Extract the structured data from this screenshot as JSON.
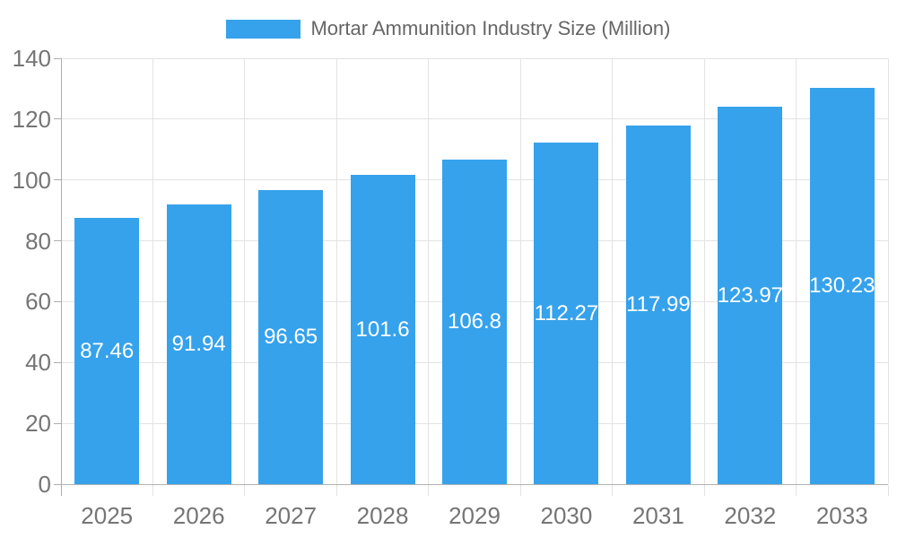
{
  "legend": {
    "label": "Mortar Ammunition Industry Size (Million)"
  },
  "chart_data": {
    "type": "bar",
    "title": "Mortar Ammunition Industry Size (Million)",
    "series_name": "Mortar Ammunition Industry Size (Million)",
    "categories": [
      "2025",
      "2026",
      "2027",
      "2028",
      "2029",
      "2030",
      "2031",
      "2032",
      "2033"
    ],
    "values": [
      87.46,
      91.94,
      96.65,
      101.6,
      106.8,
      112.27,
      117.99,
      123.97,
      130.23
    ],
    "xlabel": "",
    "ylabel": "",
    "ylim": [
      0,
      140
    ],
    "ytick_step": 20,
    "yticks": [
      0,
      20,
      40,
      60,
      80,
      100,
      120,
      140
    ],
    "grid": true,
    "legend_position": "top",
    "value_labels": "inside-center",
    "colors": {
      "bar": "#36A2EB",
      "value_label": "#FFFFFF",
      "tick_label": "#757575",
      "title": "#666666",
      "gridline": "#E3E3E3",
      "axis_line": "#ADADAD"
    }
  }
}
